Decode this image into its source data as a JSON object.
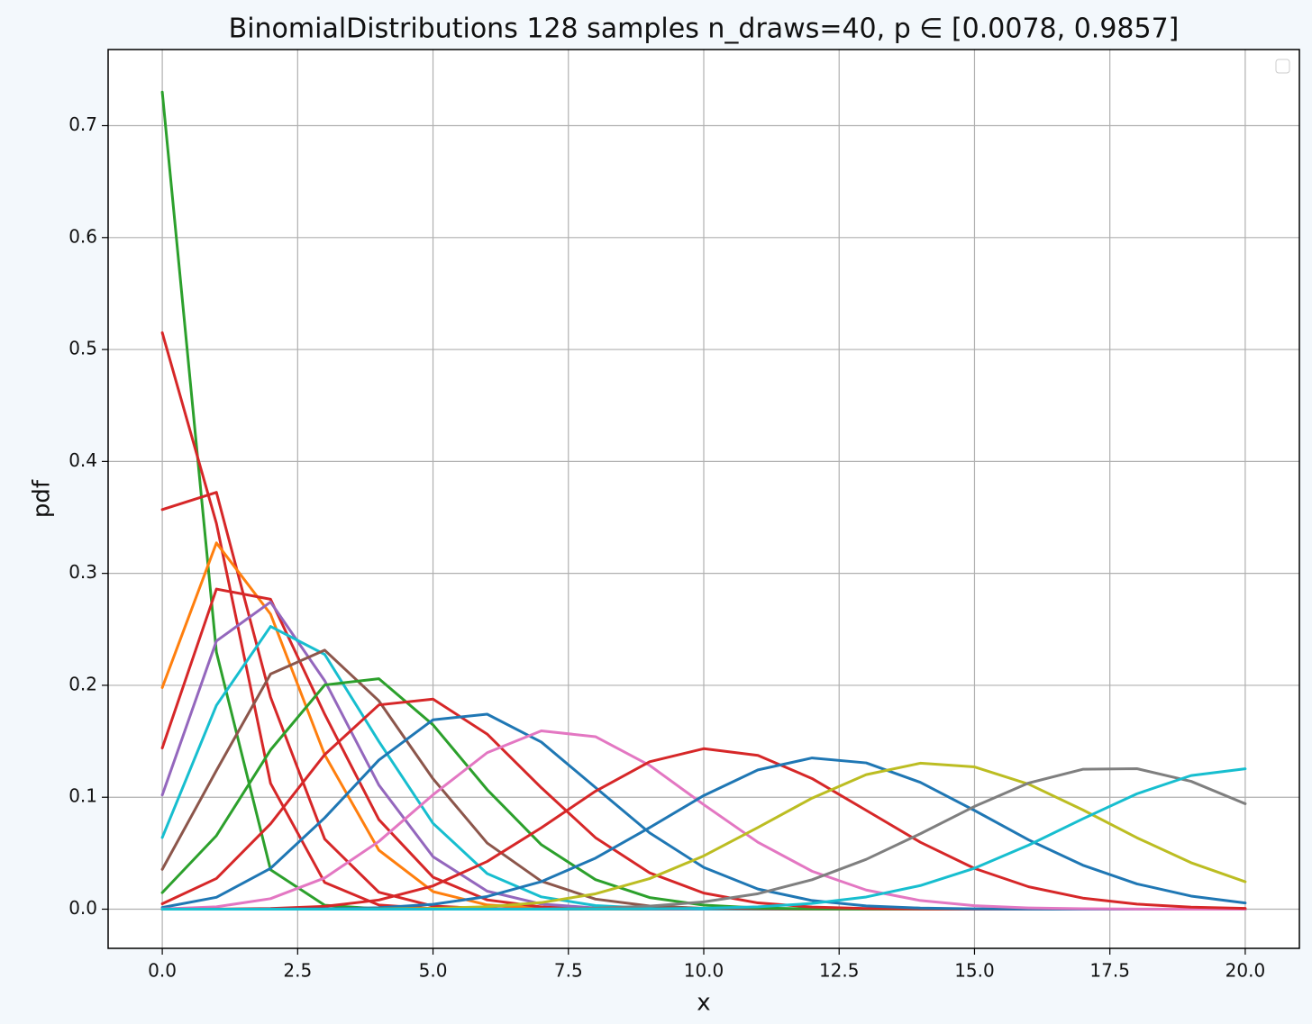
{
  "chart_data": {
    "type": "line",
    "title": "BinomialDistributions 128 samples n_draws=40,  p ∈ [0.0078, 0.9857]",
    "x_label": "x",
    "y_label": "pdf",
    "grid": true,
    "legend": "upper right",
    "xlim": [
      -1.0,
      21.0
    ],
    "ylim": [
      -0.035,
      0.768
    ],
    "xticks": [
      {
        "value": 0,
        "label": "0.0"
      },
      2.5,
      {
        "value": 5,
        "label": "5.0"
      },
      7.5,
      {
        "value": 10,
        "label": "10.0"
      },
      12.5,
      {
        "value": 15,
        "label": "15.0"
      },
      17.5,
      {
        "value": 20,
        "label": "20.0"
      }
    ],
    "yticks": [
      {
        "value": 0,
        "label": "0.0"
      },
      0.1,
      0.2,
      0.3,
      0.4,
      0.5,
      0.6,
      0.7
    ],
    "x": [
      0,
      1,
      2,
      3,
      4,
      5,
      6,
      7,
      8,
      9,
      10,
      11,
      12,
      13,
      14,
      15,
      16,
      17,
      18,
      19,
      20
    ],
    "series": [
      {
        "color": "#2ca02c",
        "values": [
          0.73,
          0.2296,
          0.0352,
          0.0035,
          0.0003,
          0,
          0,
          0,
          0,
          0,
          0,
          0,
          0,
          0,
          0,
          0,
          0,
          0,
          0,
          0,
          0
        ]
      },
      {
        "color": "#d62728",
        "values": [
          0.515,
          0.3446,
          0.1124,
          0.0238,
          0.0037,
          0.0005,
          0,
          0,
          0,
          0,
          0,
          0,
          0,
          0,
          0,
          0,
          0,
          0,
          0,
          0,
          0
        ]
      },
      {
        "color": "#d62728",
        "values": [
          0.357,
          0.3724,
          0.1894,
          0.0626,
          0.0151,
          0.0028,
          0.0004,
          0,
          0,
          0,
          0,
          0,
          0,
          0,
          0,
          0,
          0,
          0,
          0,
          0,
          0
        ]
      },
      {
        "color": "#ff7f0e",
        "values": [
          0.198,
          0.3272,
          0.2636,
          0.1379,
          0.0527,
          0.0157,
          0.0038,
          0.0008,
          0.0001,
          0,
          0,
          0,
          0,
          0,
          0,
          0,
          0,
          0,
          0,
          0,
          0
        ]
      },
      {
        "color": "#d62728",
        "values": [
          0.144,
          0.286,
          0.2769,
          0.1741,
          0.08,
          0.0286,
          0.0083,
          0.002,
          0.0004,
          0,
          0,
          0,
          0,
          0,
          0,
          0,
          0,
          0,
          0,
          0,
          0
        ]
      },
      {
        "color": "#9467bd",
        "values": [
          0.102,
          0.2396,
          0.2744,
          0.2041,
          0.1109,
          0.0469,
          0.0161,
          0.0046,
          0.0011,
          0.0002,
          0,
          0,
          0,
          0,
          0,
          0,
          0,
          0,
          0,
          0,
          0
        ]
      },
      {
        "color": "#17becf",
        "values": [
          0.064,
          0.1821,
          0.2526,
          0.2276,
          0.1498,
          0.0767,
          0.0318,
          0.011,
          0.0032,
          0.0008,
          0.0002,
          0,
          0,
          0,
          0,
          0,
          0,
          0,
          0,
          0,
          0
        ]
      },
      {
        "color": "#8c564b",
        "values": [
          0.0356,
          0.1239,
          0.2101,
          0.2314,
          0.1861,
          0.1165,
          0.0591,
          0.025,
          0.009,
          0.0028,
          0.0008,
          0.0002,
          0,
          0,
          0,
          0,
          0,
          0,
          0,
          0,
          0
        ]
      },
      {
        "color": "#2ca02c",
        "values": [
          0.0148,
          0.0657,
          0.1423,
          0.2003,
          0.2059,
          0.1647,
          0.1068,
          0.0576,
          0.0264,
          0.0104,
          0.0036,
          0.0011,
          0.0003,
          0.0001,
          0,
          0,
          0,
          0,
          0,
          0,
          0
        ]
      },
      {
        "color": "#d62728",
        "values": [
          0.0048,
          0.0274,
          0.0763,
          0.1381,
          0.1825,
          0.1877,
          0.1564,
          0.1085,
          0.0639,
          0.0325,
          0.0144,
          0.0056,
          0.0019,
          0.0006,
          0.0002,
          0,
          0,
          0,
          0,
          0,
          0
        ]
      },
      {
        "color": "#1f77b4",
        "values": [
          0.0015,
          0.0106,
          0.0365,
          0.0816,
          0.1332,
          0.1692,
          0.1742,
          0.1493,
          0.1087,
          0.0682,
          0.0373,
          0.018,
          0.0077,
          0.0029,
          0.001,
          0.0003,
          0.0001,
          0,
          0,
          0,
          0
        ]
      },
      {
        "color": "#e377c2",
        "values": [
          0.0002,
          0.0021,
          0.0094,
          0.0279,
          0.0605,
          0.1022,
          0.1398,
          0.1593,
          0.1541,
          0.1285,
          0.0934,
          0.0598,
          0.0339,
          0.0171,
          0.0077,
          0.0031,
          0.0011,
          0.0004,
          0.0001,
          0,
          0
        ]
      },
      {
        "color": "#d62728",
        "values": [
          0,
          0.0001,
          0.0006,
          0.0025,
          0.0082,
          0.0208,
          0.0426,
          0.0727,
          0.1054,
          0.1317,
          0.1434,
          0.1374,
          0.1167,
          0.0883,
          0.0598,
          0.0364,
          0.02,
          0.0099,
          0.0045,
          0.0018,
          0.0007
        ]
      },
      {
        "color": "#1f77b4",
        "values": [
          0,
          0,
          0.0001,
          0.0003,
          0.0013,
          0.0043,
          0.0113,
          0.0246,
          0.0456,
          0.0729,
          0.1015,
          0.1244,
          0.1351,
          0.1307,
          0.1133,
          0.0882,
          0.0619,
          0.0393,
          0.0226,
          0.0117,
          0.0055
        ]
      },
      {
        "color": "#bcbd22",
        "values": [
          0,
          0,
          0,
          0,
          0.0002,
          0.0007,
          0.0022,
          0.0059,
          0.0137,
          0.0273,
          0.0476,
          0.073,
          0.0992,
          0.1202,
          0.1304,
          0.1271,
          0.1117,
          0.0887,
          0.0638,
          0.0415,
          0.0245
        ]
      },
      {
        "color": "#7f7f7f",
        "values": [
          0,
          0,
          0,
          0,
          0,
          0,
          0.0001,
          0.0003,
          0.0009,
          0.0027,
          0.0065,
          0.0138,
          0.0263,
          0.0445,
          0.0674,
          0.0918,
          0.1127,
          0.125,
          0.1255,
          0.1142,
          0.0942
        ]
      },
      {
        "color": "#17becf",
        "values": [
          0,
          0,
          0,
          0,
          0,
          0,
          0,
          0,
          0.0001,
          0.0002,
          0.0008,
          0.0021,
          0.0051,
          0.0109,
          0.0211,
          0.0366,
          0.0572,
          0.0807,
          0.1031,
          0.1194,
          0.1254
        ]
      }
    ]
  }
}
